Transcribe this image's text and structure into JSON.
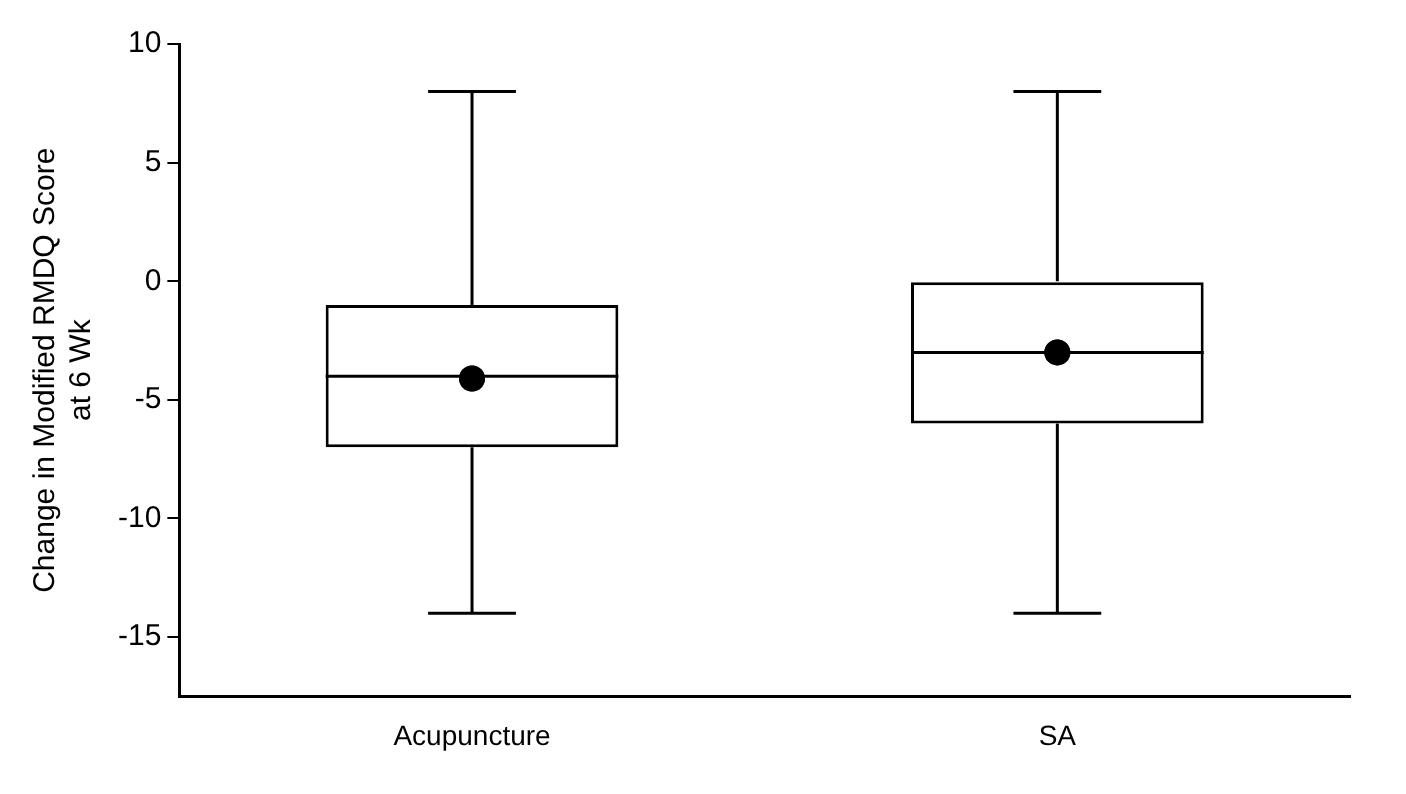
{
  "chart_data": {
    "type": "box",
    "ylabel": "Change in Modified RMDQ Score\nat 6 Wk",
    "categories": [
      "Acupuncture",
      "SA"
    ],
    "boxes": [
      {
        "low": -14,
        "q1": -7,
        "median": -4,
        "q3": -1,
        "high": 8,
        "mean": -4.1
      },
      {
        "low": -14,
        "q1": -6,
        "median": -3,
        "q3": 0,
        "high": 8,
        "mean": -3
      }
    ],
    "ylim": [
      -17.5,
      10
    ],
    "yticks": [
      -15,
      -10,
      -5,
      0,
      5,
      10
    ],
    "grid": false,
    "legend": false
  }
}
